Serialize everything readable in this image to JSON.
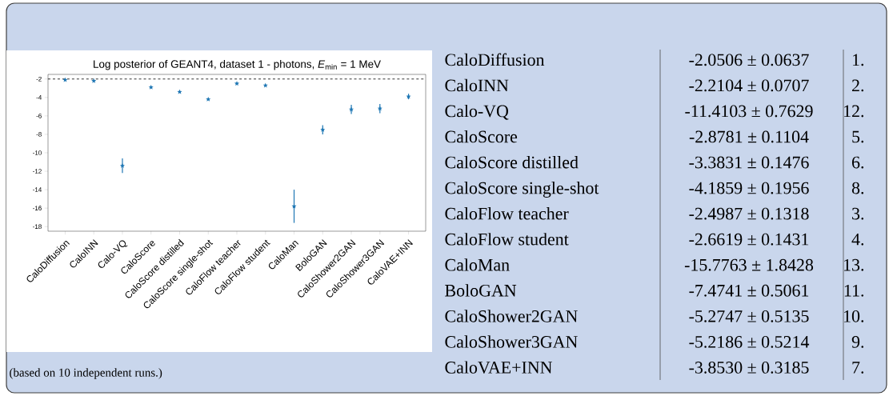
{
  "chart_data": [
    {
      "type": "scatter",
      "title": "Log posterior of GEANT4, dataset 1 - photons, *E*$_{min}$ =  1 MeV",
      "categories": [
        "CaloDiffusion",
        "CaloINN",
        "Calo-VQ",
        "CaloScore",
        "CaloScore distilled",
        "CaloScore single-shot",
        "CaloFlow teacher",
        "CaloFlow student",
        "CaloMan",
        "BoloGAN",
        "CaloShower2GAN",
        "CaloShower3GAN",
        "CaloVAE+INN"
      ],
      "values": [
        -2.1,
        -2.2,
        -11.4,
        -2.9,
        -3.4,
        -4.2,
        -2.5,
        -2.7,
        -15.8,
        -7.5,
        -5.3,
        -5.2,
        -3.9
      ],
      "errors": [
        null,
        null,
        0.8,
        null,
        null,
        null,
        null,
        null,
        1.8,
        0.5,
        0.5,
        0.5,
        0.3
      ],
      "color": "#1f77b4",
      "marker": "star",
      "ylim": [
        -18.5,
        -1.5
      ],
      "yticks": [
        -18,
        -16,
        -14,
        -12,
        -10,
        -8,
        -6,
        -4,
        -2
      ],
      "ref_lines": [
        {
          "axis": "y",
          "value": -2,
          "line_style": "dashed",
          "color": "#000000"
        }
      ],
      "annotations": [
        "(based on 10 independent runs.)"
      ]
    },
    {
      "type": "other",
      "categories": [
        "CaloDiffusion",
        "CaloINN",
        "Calo-VQ",
        "CaloScore",
        "CaloScore distilled",
        "CaloScore single-shot",
        "CaloFlow teacher",
        "CaloFlow student",
        "CaloMan",
        "BoloGAN",
        "CaloShower2GAN",
        "CaloShower3GAN",
        "CaloVAE+INN"
      ],
      "value_labels": [
        "-2.0506 ± 0.0637",
        "-2.2104 ± 0.0707",
        "-11.4103 ± 0.7629",
        "-2.8781 ± 0.1104",
        "-3.3831 ± 0.1476",
        "-4.1859 ± 0.1956",
        "-2.4987 ± 0.1318",
        "-2.6619 ± 0.1431",
        "-15.7763 ± 1.8428",
        "-7.4741 ± 0.5061",
        "-5.2747 ± 0.5135",
        "-5.2186 ± 0.5214",
        "-3.8530 ± 0.3185"
      ],
      "annotations": [
        "1.",
        "2.",
        "12.",
        "5.",
        "6.",
        "8.",
        "3.",
        "4.",
        "13.",
        "11.",
        "10.",
        "9.",
        "7."
      ]
    }
  ]
}
